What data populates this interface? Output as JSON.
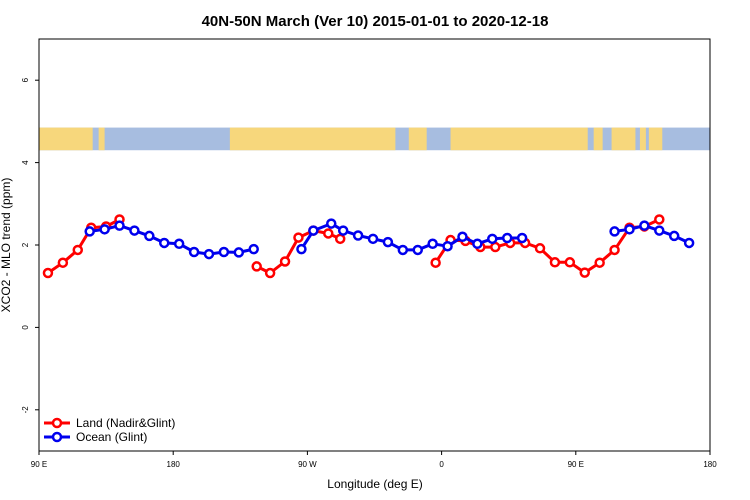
{
  "chart_data": {
    "type": "line",
    "title": "40N-50N March (Ver 10)   2015-01-01 to 2020-12-18",
    "xlabel": "Longitude (deg E)",
    "ylabel": "XCO2 - MLO trend (ppm)",
    "xlim": [
      90,
      540
    ],
    "ylim": [
      -3,
      7
    ],
    "x_ticks": [
      {
        "value": 90,
        "label": "90 E"
      },
      {
        "value": 180,
        "label": "180"
      },
      {
        "value": 270,
        "label": "90 W"
      },
      {
        "value": 360,
        "label": "0"
      },
      {
        "value": 450,
        "label": "90 E"
      },
      {
        "value": 540,
        "label": "180"
      }
    ],
    "y_ticks": [
      {
        "value": -2,
        "label": "-2"
      },
      {
        "value": 0,
        "label": "0"
      },
      {
        "value": 2,
        "label": "2"
      },
      {
        "value": 4,
        "label": "4"
      },
      {
        "value": 6,
        "label": "6"
      }
    ],
    "legend_position": "bottom-left",
    "map_band": {
      "y_range": [
        4.3,
        4.85
      ],
      "ocean_color": "#a7bde0",
      "land_color": "#f7d77c"
    },
    "series": [
      {
        "name": "Land (Nadir&Glint)",
        "color": "#ff0000",
        "segments": [
          [
            [
              96,
              1.32
            ],
            [
              106,
              1.57
            ],
            [
              116,
              1.88
            ],
            [
              125,
              2.42
            ],
            [
              135,
              2.45
            ],
            [
              144,
              2.62
            ]
          ],
          [
            [
              236,
              1.48
            ],
            [
              245,
              1.32
            ],
            [
              255,
              1.6
            ],
            [
              264,
              2.18
            ],
            [
              274,
              2.35
            ],
            [
              284,
              2.28
            ],
            [
              292,
              2.15
            ]
          ],
          [
            [
              356,
              1.57
            ],
            [
              366,
              2.12
            ],
            [
              376,
              2.1
            ],
            [
              386,
              1.95
            ],
            [
              396,
              1.95
            ],
            [
              406,
              2.05
            ],
            [
              416,
              2.05
            ],
            [
              426,
              1.92
            ],
            [
              436,
              1.58
            ],
            [
              446,
              1.58
            ],
            [
              456,
              1.33
            ],
            [
              466,
              1.57
            ],
            [
              476,
              1.88
            ],
            [
              486,
              2.42
            ],
            [
              496,
              2.45
            ],
            [
              506,
              2.62
            ]
          ]
        ]
      },
      {
        "name": "Ocean (Glint)",
        "color": "#0000ee",
        "segments": [
          [
            [
              124,
              2.33
            ],
            [
              134,
              2.38
            ],
            [
              144,
              2.47
            ],
            [
              154,
              2.35
            ],
            [
              164,
              2.22
            ],
            [
              174,
              2.05
            ],
            [
              184,
              2.03
            ],
            [
              194,
              1.83
            ],
            [
              204,
              1.78
            ],
            [
              214,
              1.83
            ],
            [
              224,
              1.82
            ],
            [
              234,
              1.9
            ]
          ],
          [
            [
              266,
              1.9
            ],
            [
              274,
              2.35
            ],
            [
              286,
              2.52
            ],
            [
              294,
              2.35
            ],
            [
              304,
              2.23
            ],
            [
              314,
              2.15
            ],
            [
              324,
              2.07
            ],
            [
              334,
              1.88
            ],
            [
              344,
              1.88
            ],
            [
              354,
              2.03
            ],
            [
              364,
              1.97
            ],
            [
              374,
              2.2
            ],
            [
              384,
              2.03
            ],
            [
              394,
              2.15
            ],
            [
              404,
              2.17
            ],
            [
              414,
              2.17
            ]
          ],
          [
            [
              476,
              2.33
            ],
            [
              486,
              2.38
            ],
            [
              496,
              2.47
            ],
            [
              506,
              2.35
            ],
            [
              516,
              2.22
            ],
            [
              526,
              2.05
            ]
          ]
        ]
      }
    ]
  }
}
